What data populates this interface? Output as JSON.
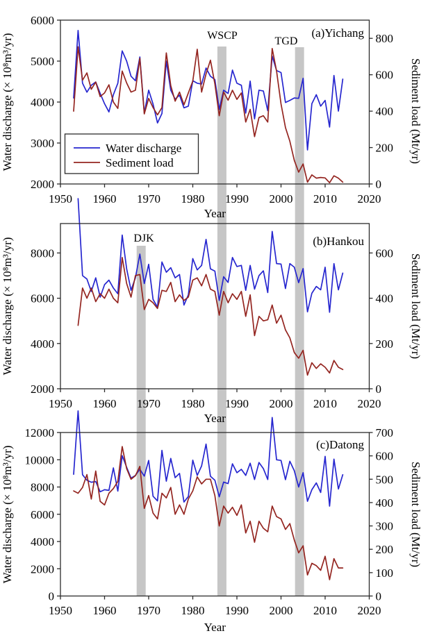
{
  "figure": {
    "description": "Annual water discharge and sediment load at three Yangtze River gauging stations",
    "x_axis_label": "Year"
  },
  "styles": {
    "discharge_color": "#2626cf",
    "sediment_color": "#942520",
    "event_bar_color": "#c6c6c6",
    "axis_color": "#2b2b2b",
    "text_color": "#000000",
    "background": "#ffffff"
  },
  "legend": {
    "items": [
      {
        "label": "Water discharge",
        "series": "discharge"
      },
      {
        "label": "Sediment load",
        "series": "sediment"
      }
    ]
  },
  "event_bars": [
    {
      "label": "DJK",
      "year": 1968.3
    },
    {
      "label": "WSCP",
      "year": 1986.6
    },
    {
      "label": "TGD",
      "year": 2004.2
    }
  ],
  "chart_data": [
    {
      "type": "line",
      "title": "(a)Yichang",
      "xlabel": "Year",
      "ylabel_left": "Water discharge (× 10⁸m³/yr)",
      "ylabel_right": "Sediment load (Mt/yr)",
      "xlim": [
        1950,
        2020
      ],
      "xticks": [
        1950,
        1960,
        1970,
        1980,
        1990,
        2000,
        2010,
        2020
      ],
      "ylim_left": [
        2000,
        6000
      ],
      "yticks_left": [
        2000,
        3000,
        4000,
        5000,
        6000
      ],
      "ylim_right": [
        0,
        900
      ],
      "yticks_right": [
        0,
        200,
        400,
        600,
        800
      ],
      "grid": false,
      "legend_position": "lower-left",
      "annotation_labels": [
        "WSCP",
        "TGD"
      ],
      "year_start": 1953,
      "series": [
        {
          "name": "Water discharge",
          "axis": "left",
          "values": [
            4100,
            5750,
            4460,
            4240,
            4410,
            4490,
            4210,
            3960,
            3760,
            4180,
            4460,
            5250,
            5000,
            4630,
            4520,
            5100,
            3730,
            4290,
            3950,
            3490,
            3720,
            5000,
            4290,
            4070,
            4170,
            3860,
            3900,
            4520,
            4460,
            4440,
            4830,
            4630,
            4550,
            3820,
            4290,
            4210,
            4780,
            4460,
            4410,
            3730,
            4510,
            3590,
            4290,
            4270,
            3790,
            5120,
            4770,
            4720,
            3990,
            4040,
            4100,
            4090,
            4580,
            2830,
            3960,
            4180,
            3900,
            4040,
            3390,
            4650,
            3780,
            4560
          ]
        },
        {
          "name": "Sediment load",
          "axis": "right",
          "values": [
            400,
            754,
            570,
            610,
            520,
            560,
            480,
            500,
            545,
            450,
            415,
            620,
            555,
            505,
            515,
            690,
            385,
            470,
            420,
            380,
            420,
            720,
            540,
            455,
            505,
            435,
            500,
            565,
            740,
            505,
            605,
            680,
            550,
            375,
            505,
            460,
            515,
            465,
            500,
            340,
            410,
            260,
            365,
            375,
            340,
            744,
            620,
            440,
            310,
            235,
            130,
            65,
            110,
            10,
            50,
            32,
            36,
            33,
            7,
            45,
            32,
            10
          ]
        }
      ]
    },
    {
      "type": "line",
      "title": "(b)Hankou",
      "xlabel": "Year",
      "ylabel_left": "Water discharge (× 10⁸m³/yr)",
      "ylabel_right": "Sediment load (Mt/yr)",
      "xlim": [
        1950,
        2020
      ],
      "xticks": [
        1950,
        1960,
        1970,
        1980,
        1990,
        2000,
        2010,
        2020
      ],
      "ylim_left": [
        2000,
        9300
      ],
      "yticks_left": [
        2000,
        4000,
        6000,
        8000
      ],
      "ylim_right": [
        0,
        730
      ],
      "yticks_right": [
        0,
        200,
        400,
        600
      ],
      "grid": false,
      "legend_position": "none",
      "annotation_labels": [
        "DJK"
      ],
      "year_start": 1954,
      "series": [
        {
          "name": "Water discharge",
          "axis": "left",
          "values": [
            10400,
            7000,
            6850,
            6300,
            6900,
            6050,
            6600,
            6800,
            6450,
            6200,
            8790,
            7300,
            6350,
            6900,
            7950,
            6650,
            7500,
            5950,
            5600,
            7600,
            7150,
            7350,
            6900,
            7050,
            5700,
            6150,
            7750,
            7250,
            7450,
            8600,
            7300,
            7200,
            5900,
            6950,
            6700,
            7800,
            7400,
            7450,
            6350,
            7450,
            6400,
            7000,
            7210,
            6250,
            8950,
            7530,
            7510,
            6430,
            7530,
            7370,
            6690,
            7310,
            5400,
            6220,
            6520,
            6370,
            7370,
            5380,
            7530,
            6370,
            7110
          ]
        },
        {
          "name": "Sediment load",
          "axis": "right",
          "values": [
            280,
            445,
            400,
            445,
            385,
            420,
            400,
            440,
            400,
            380,
            580,
            465,
            405,
            500,
            505,
            350,
            395,
            380,
            355,
            435,
            430,
            470,
            385,
            415,
            390,
            405,
            480,
            490,
            455,
            505,
            440,
            430,
            325,
            430,
            380,
            420,
            395,
            430,
            320,
            415,
            235,
            320,
            300,
            305,
            370,
            290,
            325,
            260,
            225,
            160,
            135,
            170,
            60,
            115,
            90,
            110,
            95,
            70,
            125,
            95,
            85
          ]
        }
      ]
    },
    {
      "type": "line",
      "title": "(c)Datong",
      "xlabel": "Year",
      "ylabel_left": "Water discharge (× 10⁸m³/yr)",
      "ylabel_right": "Sediment load (Mt/yr)",
      "xlim": [
        1950,
        2020
      ],
      "xticks": [
        1950,
        1960,
        1970,
        1980,
        1990,
        2000,
        2010,
        2020
      ],
      "ylim_left": [
        0,
        12000
      ],
      "yticks_left": [
        0,
        2000,
        4000,
        6000,
        8000,
        10000,
        12000
      ],
      "ylim_right": [
        0,
        700
      ],
      "yticks_right": [
        0,
        100,
        200,
        300,
        400,
        500,
        600,
        700
      ],
      "grid": false,
      "legend_position": "none",
      "annotation_labels": [],
      "year_start": 1953,
      "series": [
        {
          "name": "Water discharge",
          "axis": "left",
          "values": [
            8930,
            13590,
            8900,
            8500,
            8350,
            8400,
            7650,
            7800,
            7750,
            9400,
            7700,
            10300,
            9450,
            8650,
            8850,
            9300,
            8800,
            9950,
            7320,
            6980,
            10690,
            8430,
            10100,
            8690,
            9000,
            6900,
            7300,
            9970,
            8850,
            9550,
            11150,
            8790,
            8500,
            7280,
            8360,
            8250,
            9700,
            9050,
            9300,
            8850,
            9750,
            8550,
            9800,
            9350,
            8550,
            13100,
            10000,
            9950,
            8540,
            9890,
            9200,
            8000,
            9050,
            6950,
            7800,
            8300,
            7600,
            10250,
            6600,
            10050,
            7850,
            8900
          ]
        },
        {
          "name": "Sediment load",
          "axis": "right",
          "values": [
            450,
            440,
            465,
            520,
            415,
            535,
            405,
            390,
            440,
            460,
            490,
            640,
            545,
            500,
            515,
            555,
            375,
            430,
            355,
            330,
            440,
            420,
            465,
            350,
            390,
            350,
            415,
            450,
            510,
            480,
            500,
            500,
            430,
            300,
            385,
            355,
            380,
            345,
            390,
            270,
            320,
            230,
            320,
            290,
            275,
            385,
            340,
            330,
            285,
            310,
            240,
            185,
            215,
            90,
            140,
            130,
            110,
            170,
            70,
            160,
            120,
            120
          ]
        }
      ]
    }
  ]
}
